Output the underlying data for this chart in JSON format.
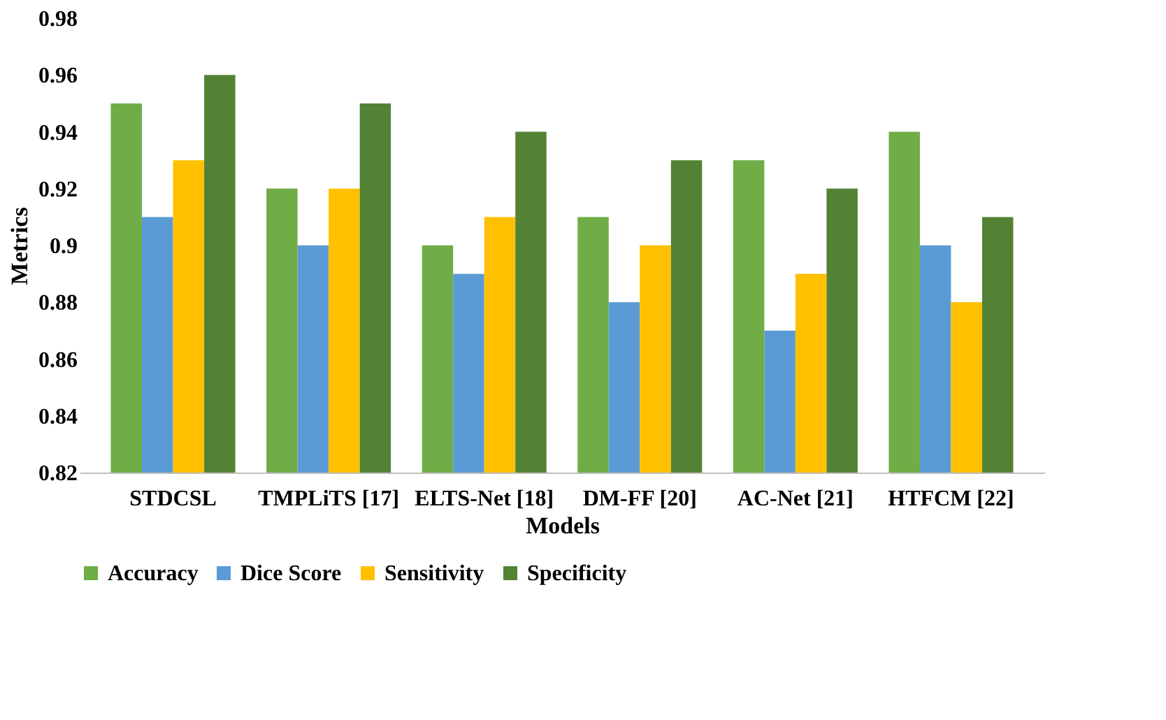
{
  "chart_data": {
    "type": "bar",
    "xlabel": "Models",
    "ylabel": "Metrics",
    "categories": [
      "STDCSL",
      "TMPLiTS [17]",
      "ELTS-Net [18]",
      "DM-FF [20]",
      "AC-Net [21]",
      "HTFCM [22]"
    ],
    "series": [
      {
        "name": "Accuracy",
        "color": "#70ad47",
        "values": [
          0.95,
          0.92,
          0.9,
          0.91,
          0.93,
          0.94
        ]
      },
      {
        "name": "Dice Score",
        "color": "#5b9bd5",
        "values": [
          0.91,
          0.9,
          0.89,
          0.88,
          0.87,
          0.9
        ]
      },
      {
        "name": "Sensitivity",
        "color": "#ffc000",
        "values": [
          0.93,
          0.92,
          0.91,
          0.9,
          0.89,
          0.88
        ]
      },
      {
        "name": "Specificity",
        "color": "#548235",
        "values": [
          0.96,
          0.95,
          0.94,
          0.93,
          0.92,
          0.91
        ]
      }
    ],
    "ylim": [
      0.82,
      0.98
    ],
    "yticks": [
      0.82,
      0.84,
      0.86,
      0.88,
      0.9,
      0.92,
      0.94,
      0.96,
      0.98
    ],
    "grid": false,
    "legend": "bottom"
  }
}
